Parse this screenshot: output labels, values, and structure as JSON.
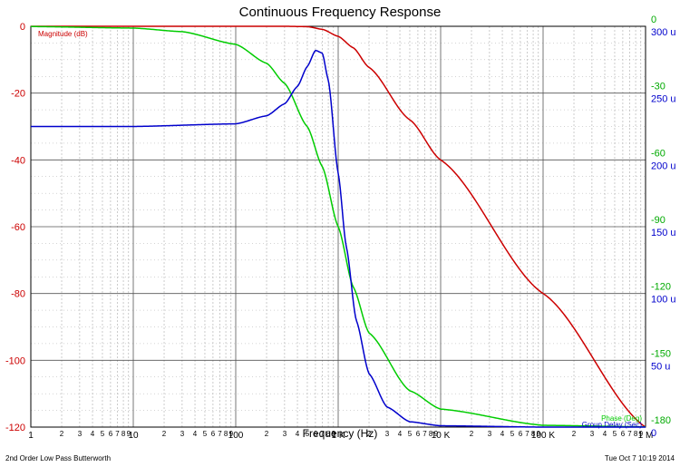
{
  "chart_data": {
    "type": "line",
    "title": "Continuous Frequency Response",
    "xlabel": "Frequency (Hz)",
    "x_scale": "log",
    "xlim": [
      1,
      1000000
    ],
    "x_decade_labels": [
      "1",
      "10",
      "100",
      "1 K",
      "10 K",
      "100 K",
      "1 M"
    ],
    "x_minor_labels": [
      "2",
      "3",
      "4",
      "5",
      "6",
      "7",
      "8",
      "9"
    ],
    "y_left": {
      "ylim": [
        -120,
        0
      ],
      "ticks": [
        "0",
        "-20",
        "-40",
        "-60",
        "-80",
        "-100",
        "-120"
      ],
      "color": "#cc0000"
    },
    "y_right_phase": {
      "ylim": [
        -180,
        0
      ],
      "ticks": [
        "0",
        "-30",
        "-60",
        "-90",
        "-120",
        "-150",
        "-180"
      ],
      "color": "#00aa00"
    },
    "y_right_delay": {
      "ylim": [
        0,
        0.0003
      ],
      "ticks": [
        "300 u",
        "250 u",
        "200 u",
        "150 u",
        "100 u",
        "50 u",
        "0"
      ],
      "color": "#0000cc"
    },
    "grid": true,
    "cutoff_hz": 1000,
    "series": [
      {
        "name": "Magnitude (dB)",
        "color": "#cc0000",
        "axis": "left",
        "x": [
          1,
          10,
          100,
          300,
          500,
          700,
          1000,
          1400,
          2000,
          5000,
          10000,
          100000,
          1000000
        ],
        "values": [
          0,
          0,
          0,
          0,
          -0.1,
          -0.9,
          -3.0,
          -6.4,
          -12.3,
          -28.0,
          -40.0,
          -80.0,
          -120.0
        ]
      },
      {
        "name": "Phase (Deg)",
        "color": "#00cc00",
        "axis": "phase",
        "x": [
          1,
          10,
          30,
          100,
          200,
          300,
          500,
          700,
          1000,
          1400,
          2000,
          5000,
          10000,
          100000,
          1000000
        ],
        "values": [
          -0.1,
          -0.8,
          -2.4,
          -8.1,
          -16.6,
          -25.6,
          -45.1,
          -63.0,
          -90.0,
          -117.0,
          -137.7,
          -163.7,
          -171.9,
          -179.2,
          -179.9
        ]
      },
      {
        "name": "Group Delay (Sec)",
        "color": "#0000cc",
        "axis": "delay",
        "x": [
          1,
          10,
          100,
          200,
          300,
          400,
          500,
          600,
          700,
          800,
          1000,
          1200,
          1500,
          2000,
          3000,
          5000,
          10000,
          100000,
          1000000
        ],
        "values": [
          0.000225,
          0.000225,
          0.000227,
          0.000233,
          0.000242,
          0.000255,
          0.00027,
          0.000282,
          0.00028,
          0.00026,
          0.00019,
          0.000135,
          8e-05,
          4e-05,
          1.5e-05,
          4e-06,
          1e-06,
          0,
          0
        ]
      }
    ]
  },
  "footer": {
    "left": "2nd Order Low Pass Butterworth",
    "right": "Tue Oct  7 10:19 2014"
  }
}
